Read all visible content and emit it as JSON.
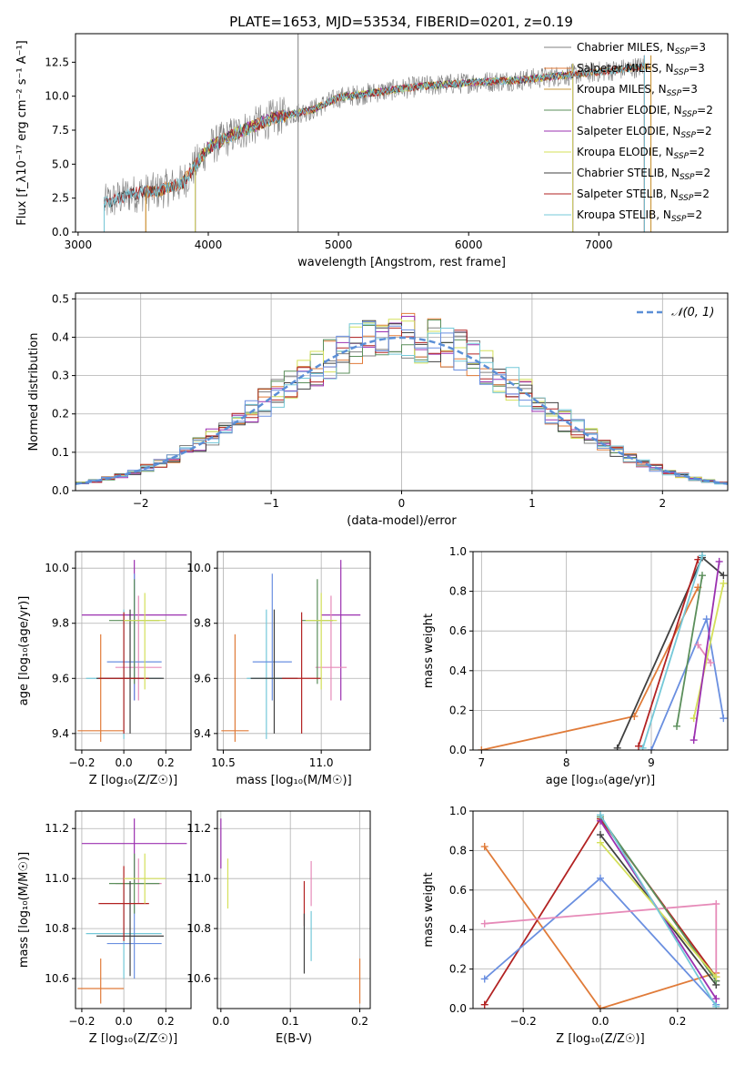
{
  "figure": {
    "title": "PLATE=1653, MJD=53534, FIBERID=0201, z=0.19"
  },
  "chart_data": [
    {
      "id": "spectrum",
      "type": "line",
      "xlabel": "wavelength [Angstrom, rest frame]",
      "ylabel": "Flux [f_λ10⁻¹⁷ erg cm⁻² s⁻¹ A⁻¹]",
      "xlim": [
        2980,
        7990
      ],
      "ylim": [
        0,
        14.6
      ],
      "xticks": [
        3000,
        4000,
        5000,
        6000,
        7000
      ],
      "yticks": [
        0.0,
        2.5,
        5.0,
        7.5,
        10.0,
        12.5
      ],
      "grid": false,
      "legend_position": "top-right",
      "continuum": [
        [
          3200,
          2.1
        ],
        [
          3400,
          2.8
        ],
        [
          3600,
          3.0
        ],
        [
          3800,
          3.6
        ],
        [
          4000,
          6.2
        ],
        [
          4200,
          7.2
        ],
        [
          4500,
          8.4
        ],
        [
          4800,
          9.0
        ],
        [
          5000,
          9.9
        ],
        [
          5300,
          10.3
        ],
        [
          5600,
          10.7
        ],
        [
          6000,
          11.0
        ],
        [
          6400,
          11.2
        ],
        [
          6800,
          11.6
        ],
        [
          7200,
          12.0
        ],
        [
          7350,
          12.2
        ]
      ],
      "series": [
        {
          "name": "Chabrier MILES, N_SSP=3",
          "color": "#808080",
          "range": [
            3200,
            7350
          ]
        },
        {
          "name": "Salpeter MILES, N_SSP=3",
          "color": "#e07b39",
          "range": [
            3520,
            7400
          ]
        },
        {
          "name": "Kroupa MILES, N_SSP=3",
          "color": "#c89a3a",
          "range": [
            3520,
            7400
          ]
        },
        {
          "name": "Chabrier ELODIE, N_SSP=2",
          "color": "#5b8f5b",
          "range": [
            3900,
            6800
          ]
        },
        {
          "name": "Salpeter ELODIE, N_SSP=2",
          "color": "#9b30b0",
          "range": [
            3900,
            6800
          ]
        },
        {
          "name": "Kroupa ELODIE, N_SSP=2",
          "color": "#d4e05a",
          "range": [
            3900,
            6800
          ]
        },
        {
          "name": "Chabrier STELIB, N_SSP=2",
          "color": "#404040",
          "range": [
            3200,
            7350
          ]
        },
        {
          "name": "Salpeter STELIB, N_SSP=2",
          "color": "#b22222",
          "range": [
            3200,
            7350
          ]
        },
        {
          "name": "Kroupa STELIB, N_SSP=2",
          "color": "#74c8d8",
          "range": [
            3200,
            7350
          ]
        }
      ]
    },
    {
      "id": "residuals",
      "type": "histogram",
      "xlabel": "(data-model)/error",
      "ylabel": "Normed distribution",
      "xlim": [
        -2.5,
        2.5
      ],
      "ylim": [
        0,
        0.515
      ],
      "xticks": [
        -2,
        -1,
        0,
        1,
        2
      ],
      "yticks": [
        0.0,
        0.1,
        0.2,
        0.3,
        0.4,
        0.5
      ],
      "grid": true,
      "bin_width": 0.1,
      "legend": [
        {
          "name": "𝒩(0, 1)",
          "color": "#5b8fd6",
          "style": "dashed"
        }
      ],
      "legend_position": "top-right",
      "histogram_colors": [
        "#808080",
        "#e07b39",
        "#5b8f5b",
        "#9b30b0",
        "#d4e05a",
        "#404040",
        "#b22222",
        "#74c8d8",
        "#6a8fe0"
      ]
    },
    {
      "id": "Z-age",
      "type": "errorbar",
      "xlabel": "Z [log₁₀(Z/Z☉)]",
      "ylabel": "age  [log₁₀(age/yr)]",
      "xlim": [
        -0.23,
        0.32
      ],
      "ylim": [
        9.34,
        10.06
      ],
      "xticks": [
        -0.2,
        0.0,
        0.2
      ],
      "yticks": [
        9.4,
        9.6,
        9.8,
        10.0
      ],
      "grid": true,
      "points": [
        {
          "x": -0.11,
          "xerr": 0.11,
          "y": 9.41,
          "yerr": [
            0.04,
            0.35
          ],
          "color": "#e07b39"
        },
        {
          "x": 0.05,
          "xerr": 0.25,
          "y": 9.83,
          "yerr": [
            0.31,
            0.2
          ],
          "color": "#9b30b0"
        },
        {
          "x": 0.07,
          "xerr": 0.11,
          "y": 9.64,
          "yerr": [
            0.12,
            0.26
          ],
          "color": "#e68ab8"
        },
        {
          "x": 0.0,
          "xerr": 0.18,
          "y": 9.6,
          "yerr": [
            0.22,
            0.25
          ],
          "color": "#74c8d8"
        },
        {
          "x": 0.05,
          "xerr": 0.13,
          "y": 9.66,
          "yerr": [
            0.14,
            0.32
          ],
          "color": "#6a8fe0"
        },
        {
          "x": 0.05,
          "xerr": 0.12,
          "y": 9.81,
          "yerr": [
            0.23,
            0.15
          ],
          "color": "#5b8f5b"
        },
        {
          "x": 0.03,
          "xerr": 0.16,
          "y": 9.6,
          "yerr": [
            0.2,
            0.25
          ],
          "color": "#404040"
        },
        {
          "x": 0.0,
          "xerr": 0.12,
          "y": 9.6,
          "yerr": [
            0.2,
            0.24
          ],
          "color": "#b22222"
        },
        {
          "x": 0.1,
          "xerr": 0.1,
          "y": 9.81,
          "yerr": [
            0.25,
            0.1
          ],
          "color": "#d4e05a"
        }
      ]
    },
    {
      "id": "mass-age",
      "type": "errorbar",
      "xlabel": "mass [log₁₀(M/M☉)]",
      "ylabel": "",
      "xlim": [
        10.47,
        11.25
      ],
      "ylim": [
        9.34,
        10.06
      ],
      "xticks": [
        10.5,
        11.0
      ],
      "yticks": [
        9.4,
        9.6,
        9.8,
        10.0
      ],
      "grid": true,
      "points": [
        {
          "x": 10.56,
          "xerr": 0.07,
          "y": 9.41,
          "yerr": [
            0.04,
            0.35
          ],
          "color": "#e07b39"
        },
        {
          "x": 11.1,
          "xerr": 0.1,
          "y": 9.83,
          "yerr": [
            0.31,
            0.2
          ],
          "color": "#9b30b0"
        },
        {
          "x": 11.05,
          "xerr": 0.08,
          "y": 9.64,
          "yerr": [
            0.12,
            0.26
          ],
          "color": "#e68ab8"
        },
        {
          "x": 10.72,
          "xerr": 0.1,
          "y": 9.6,
          "yerr": [
            0.22,
            0.25
          ],
          "color": "#74c8d8"
        },
        {
          "x": 10.75,
          "xerr": 0.1,
          "y": 9.66,
          "yerr": [
            0.14,
            0.32
          ],
          "color": "#6a8fe0"
        },
        {
          "x": 10.98,
          "xerr": 0.08,
          "y": 9.81,
          "yerr": [
            0.23,
            0.15
          ],
          "color": "#5b8f5b"
        },
        {
          "x": 10.76,
          "xerr": 0.12,
          "y": 9.6,
          "yerr": [
            0.2,
            0.25
          ],
          "color": "#404040"
        },
        {
          "x": 10.9,
          "xerr": 0.1,
          "y": 9.6,
          "yerr": [
            0.2,
            0.24
          ],
          "color": "#b22222"
        },
        {
          "x": 11.0,
          "xerr": 0.08,
          "y": 9.81,
          "yerr": [
            0.25,
            0.1
          ],
          "color": "#d4e05a"
        }
      ]
    },
    {
      "id": "age-weight",
      "type": "line",
      "xlabel": "age  [log₁₀(age/yr)]",
      "ylabel": "mass weight",
      "xlim": [
        6.9,
        9.9
      ],
      "ylim": [
        0.0,
        1.0
      ],
      "xticks": [
        7,
        8,
        9
      ],
      "yticks": [
        0.0,
        0.2,
        0.4,
        0.6,
        0.8,
        1.0
      ],
      "grid": true,
      "series": [
        {
          "color": "#e07b39",
          "x": [
            7.0,
            8.8,
            9.55
          ],
          "y": [
            0.0,
            0.17,
            0.82
          ]
        },
        {
          "color": "#404040",
          "x": [
            8.6,
            9.6,
            9.85
          ],
          "y": [
            0.01,
            0.97,
            0.88
          ]
        },
        {
          "color": "#b22222",
          "x": [
            8.85,
            9.55
          ],
          "y": [
            0.02,
            0.96
          ]
        },
        {
          "color": "#74c8d8",
          "x": [
            8.9,
            9.6
          ],
          "y": [
            0.01,
            0.98
          ]
        },
        {
          "color": "#6a8fe0",
          "x": [
            9.0,
            9.65,
            9.85
          ],
          "y": [
            0.0,
            0.66,
            0.16
          ]
        },
        {
          "color": "#5b8f5b",
          "x": [
            9.3,
            9.6
          ],
          "y": [
            0.12,
            0.88
          ]
        },
        {
          "color": "#e68ab8",
          "x": [
            9.55,
            9.7
          ],
          "y": [
            0.53,
            0.44
          ]
        },
        {
          "color": "#d4e05a",
          "x": [
            9.5,
            9.85
          ],
          "y": [
            0.16,
            0.84
          ]
        },
        {
          "color": "#9b30b0",
          "x": [
            9.5,
            9.8
          ],
          "y": [
            0.05,
            0.95
          ]
        }
      ]
    },
    {
      "id": "Z-mass",
      "type": "errorbar",
      "xlabel": "Z [log₁₀(Z/Z☉)]",
      "ylabel": "mass [log₁₀(M/M☉)]",
      "xlim": [
        -0.23,
        0.32
      ],
      "ylim": [
        10.48,
        11.27
      ],
      "xticks": [
        -0.2,
        0.0,
        0.2
      ],
      "yticks": [
        10.6,
        10.8,
        11.0,
        11.2
      ],
      "grid": true,
      "points": [
        {
          "x": -0.11,
          "xerr": 0.11,
          "y": 10.56,
          "yerr": [
            0.06,
            0.12
          ],
          "color": "#e07b39"
        },
        {
          "x": 0.05,
          "xerr": 0.25,
          "y": 11.14,
          "yerr": [
            0.16,
            0.1
          ],
          "color": "#9b30b0"
        },
        {
          "x": 0.07,
          "xerr": 0.11,
          "y": 10.98,
          "yerr": [
            0.08,
            0.1
          ],
          "color": "#e68ab8"
        },
        {
          "x": 0.0,
          "xerr": 0.18,
          "y": 10.78,
          "yerr": [
            0.18,
            0.2
          ],
          "color": "#74c8d8"
        },
        {
          "x": 0.05,
          "xerr": 0.13,
          "y": 10.74,
          "yerr": [
            0.14,
            0.16
          ],
          "color": "#6a8fe0"
        },
        {
          "x": 0.05,
          "xerr": 0.12,
          "y": 10.98,
          "yerr": [
            0.12,
            0.12
          ],
          "color": "#5b8f5b"
        },
        {
          "x": 0.03,
          "xerr": 0.16,
          "y": 10.77,
          "yerr": [
            0.16,
            0.22
          ],
          "color": "#404040"
        },
        {
          "x": 0.0,
          "xerr": 0.12,
          "y": 10.9,
          "yerr": [
            0.15,
            0.15
          ],
          "color": "#b22222"
        },
        {
          "x": 0.1,
          "xerr": 0.1,
          "y": 11.0,
          "yerr": [
            0.1,
            0.1
          ],
          "color": "#d4e05a"
        }
      ]
    },
    {
      "id": "ebv-mass",
      "type": "errorbar",
      "xlabel": "E(B-V)",
      "ylabel": "",
      "xlim": [
        -0.005,
        0.215
      ],
      "ylim": [
        10.48,
        11.27
      ],
      "xticks": [
        0.0,
        0.1,
        0.2
      ],
      "yticks": [
        10.6,
        10.8,
        11.0,
        11.2
      ],
      "grid": true,
      "points": [
        {
          "x": 0.0,
          "y": 11.14,
          "yerr": [
            0.1,
            0.1
          ],
          "color": "#9b30b0"
        },
        {
          "x": 0.01,
          "y": 10.98,
          "yerr": [
            0.1,
            0.1
          ],
          "color": "#d4e05a"
        },
        {
          "x": 0.12,
          "y": 10.9,
          "yerr": [
            0.09,
            0.09
          ],
          "color": "#b22222"
        },
        {
          "x": 0.12,
          "y": 10.74,
          "yerr": [
            0.12,
            0.12
          ],
          "color": "#404040"
        },
        {
          "x": 0.13,
          "y": 10.77,
          "yerr": [
            0.1,
            0.1
          ],
          "color": "#74c8d8"
        },
        {
          "x": 0.13,
          "y": 10.98,
          "yerr": [
            0.09,
            0.09
          ],
          "color": "#e68ab8"
        },
        {
          "x": 0.2,
          "y": 10.59,
          "yerr": [
            0.09,
            0.09
          ],
          "color": "#e07b39"
        }
      ]
    },
    {
      "id": "Z-weight",
      "type": "line",
      "xlabel": "Z [log₁₀(Z/Z☉)]",
      "ylabel": "mass weight",
      "xlim": [
        -0.33,
        0.33
      ],
      "ylim": [
        0.0,
        1.0
      ],
      "xticks": [
        -0.2,
        0.0,
        0.2
      ],
      "yticks": [
        0.0,
        0.2,
        0.4,
        0.6,
        0.8,
        1.0
      ],
      "grid": true,
      "series": [
        {
          "color": "#e07b39",
          "x": [
            -0.3,
            0.0,
            0.3
          ],
          "y": [
            0.82,
            0.0,
            0.18
          ]
        },
        {
          "color": "#b22222",
          "x": [
            -0.3,
            0.0,
            0.3
          ],
          "y": [
            0.02,
            0.96,
            0.16
          ]
        },
        {
          "color": "#6a8fe0",
          "x": [
            -0.3,
            0.0,
            0.3
          ],
          "y": [
            0.15,
            0.66,
            0.02
          ]
        },
        {
          "color": "#e68ab8",
          "x": [
            -0.3,
            0.3,
            0.3
          ],
          "y": [
            0.43,
            0.53,
            0.14
          ]
        },
        {
          "color": "#404040",
          "x": [
            0.0,
            0.3
          ],
          "y": [
            0.88,
            0.12
          ]
        },
        {
          "color": "#5b8f5b",
          "x": [
            0.0,
            0.3
          ],
          "y": [
            0.97,
            0.14
          ]
        },
        {
          "color": "#9b30b0",
          "x": [
            0.0,
            0.3
          ],
          "y": [
            0.95,
            0.05
          ]
        },
        {
          "color": "#d4e05a",
          "x": [
            0.0,
            0.3
          ],
          "y": [
            0.84,
            0.16
          ]
        },
        {
          "color": "#74c8d8",
          "x": [
            0.0,
            0.3
          ],
          "y": [
            0.98,
            0.01
          ]
        }
      ]
    }
  ]
}
